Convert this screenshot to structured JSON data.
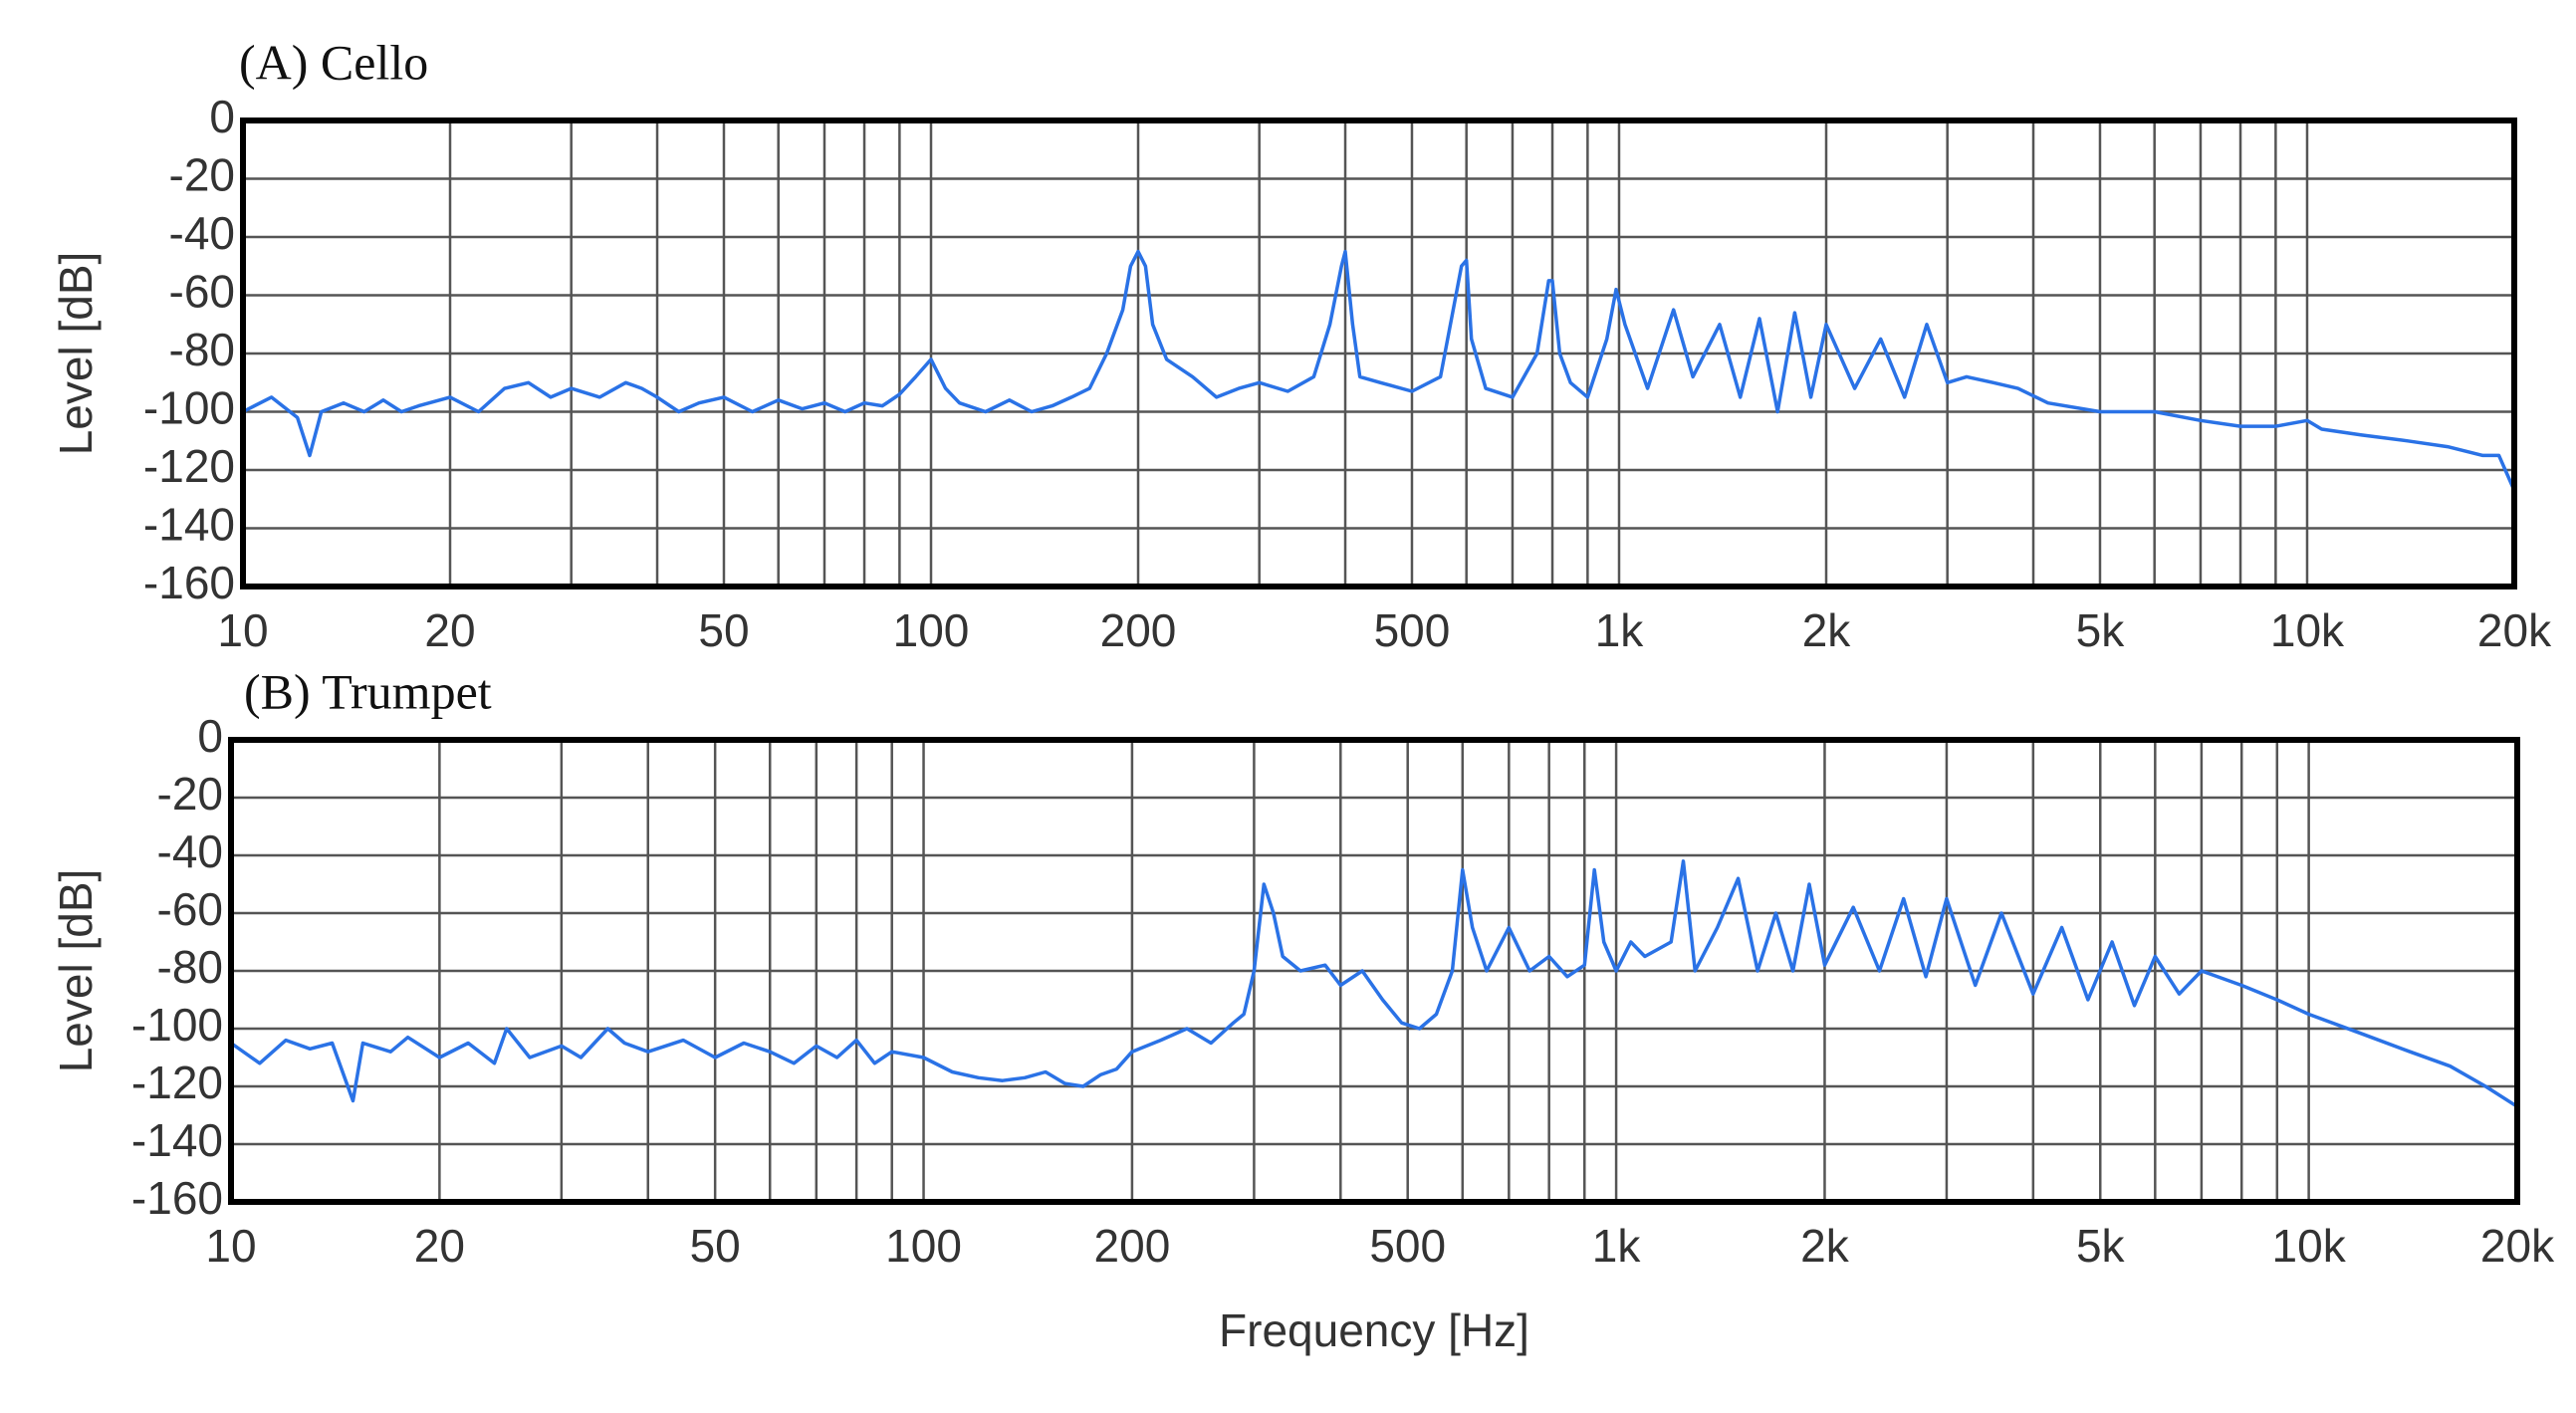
{
  "chart_data": [
    {
      "type": "line",
      "title": "(A) Cello",
      "y_label": "Level [dB]",
      "color": "#2a72e6",
      "xscale": "log",
      "xlim": [
        10,
        20000
      ],
      "ylim": [
        -160,
        0
      ],
      "grid": true,
      "yticks": [
        -160,
        -140,
        -120,
        -100,
        -80,
        -60,
        -40,
        -20,
        0
      ],
      "xticks": [
        10,
        20,
        50,
        100,
        200,
        500,
        {
          "value": 1000,
          "label": "1k"
        },
        {
          "value": 2000,
          "label": "2k"
        },
        {
          "value": 5000,
          "label": "5k"
        },
        {
          "value": 10000,
          "label": "10k"
        },
        {
          "value": 20000,
          "label": "20k"
        }
      ],
      "xminor": [
        30,
        40,
        60,
        70,
        80,
        90,
        300,
        400,
        600,
        700,
        800,
        900,
        3000,
        4000,
        6000,
        7000,
        8000,
        9000
      ],
      "x": [
        10,
        11,
        12,
        12.5,
        13,
        14,
        15,
        16,
        17,
        18,
        20,
        22,
        24,
        26,
        28,
        30,
        33,
        36,
        38,
        40,
        43,
        46,
        50,
        55,
        60,
        65,
        70,
        75,
        80,
        85,
        90,
        95,
        100,
        105,
        110,
        120,
        130,
        140,
        150,
        160,
        170,
        180,
        190,
        195,
        200,
        205,
        210,
        220,
        240,
        260,
        280,
        300,
        330,
        360,
        380,
        395,
        400,
        410,
        420,
        450,
        500,
        550,
        590,
        600,
        610,
        640,
        700,
        760,
        790,
        800,
        820,
        850,
        900,
        960,
        990,
        1020,
        1100,
        1200,
        1280,
        1400,
        1500,
        1600,
        1700,
        1800,
        1900,
        2000,
        2200,
        2400,
        2600,
        2800,
        3000,
        3200,
        3500,
        3800,
        4200,
        5000,
        6000,
        7000,
        8000,
        9000,
        10000,
        10500,
        12000,
        14000,
        16000,
        18000,
        19000,
        20000
      ],
      "values": [
        -100,
        -95,
        -102,
        -115,
        -100,
        -97,
        -100,
        -96,
        -100,
        -98,
        -95,
        -100,
        -92,
        -90,
        -95,
        -92,
        -95,
        -90,
        -92,
        -95,
        -100,
        -97,
        -95,
        -100,
        -96,
        -99,
        -97,
        -100,
        -97,
        -98,
        -94,
        -88,
        -82,
        -92,
        -97,
        -100,
        -96,
        -100,
        -98,
        -95,
        -92,
        -80,
        -65,
        -50,
        -45,
        -50,
        -70,
        -82,
        -88,
        -95,
        -92,
        -90,
        -93,
        -88,
        -70,
        -50,
        -45,
        -70,
        -88,
        -90,
        -93,
        -88,
        -50,
        -48,
        -75,
        -92,
        -95,
        -80,
        -55,
        -55,
        -80,
        -90,
        -95,
        -75,
        -58,
        -70,
        -92,
        -65,
        -88,
        -70,
        -95,
        -68,
        -100,
        -66,
        -95,
        -70,
        -92,
        -75,
        -95,
        -70,
        -90,
        -88,
        -90,
        -92,
        -97,
        -100,
        -100,
        -103,
        -105,
        -105,
        -103,
        -106,
        -108,
        -110,
        -112,
        -115,
        -115,
        -127
      ]
    },
    {
      "type": "line",
      "title": "(B) Trumpet",
      "x_label": "Frequency [Hz]",
      "y_label": "Level [dB]",
      "color": "#2a72e6",
      "xscale": "log",
      "xlim": [
        10,
        20000
      ],
      "ylim": [
        -160,
        0
      ],
      "grid": true,
      "yticks": [
        -160,
        -140,
        -120,
        -100,
        -80,
        -60,
        -40,
        -20,
        0
      ],
      "xticks": [
        10,
        20,
        50,
        100,
        200,
        500,
        {
          "value": 1000,
          "label": "1k"
        },
        {
          "value": 2000,
          "label": "2k"
        },
        {
          "value": 5000,
          "label": "5k"
        },
        {
          "value": 10000,
          "label": "10k"
        },
        {
          "value": 20000,
          "label": "20k"
        }
      ],
      "xminor": [
        30,
        40,
        60,
        70,
        80,
        90,
        300,
        400,
        600,
        700,
        800,
        900,
        3000,
        4000,
        6000,
        7000,
        8000,
        9000
      ],
      "x": [
        10,
        11,
        12,
        13,
        14,
        15,
        15.5,
        17,
        18,
        20,
        22,
        24,
        25,
        27,
        30,
        32,
        35,
        37,
        40,
        45,
        50,
        55,
        60,
        65,
        70,
        75,
        80,
        85,
        90,
        100,
        110,
        120,
        130,
        140,
        150,
        160,
        170,
        180,
        190,
        200,
        220,
        240,
        260,
        280,
        290,
        300,
        310,
        320,
        330,
        350,
        380,
        400,
        430,
        460,
        490,
        520,
        550,
        580,
        600,
        620,
        650,
        700,
        750,
        800,
        850,
        900,
        930,
        960,
        1000,
        1050,
        1100,
        1200,
        1250,
        1300,
        1400,
        1500,
        1600,
        1700,
        1800,
        1900,
        2000,
        2200,
        2400,
        2600,
        2800,
        3000,
        3300,
        3600,
        4000,
        4400,
        4800,
        5200,
        5600,
        6000,
        6500,
        7000,
        8000,
        9000,
        10000,
        12000,
        14000,
        16000,
        18000,
        20000
      ],
      "values": [
        -105,
        -112,
        -104,
        -107,
        -105,
        -125,
        -105,
        -108,
        -103,
        -110,
        -105,
        -112,
        -100,
        -110,
        -106,
        -110,
        -100,
        -105,
        -108,
        -104,
        -110,
        -105,
        -108,
        -112,
        -106,
        -110,
        -104,
        -112,
        -108,
        -110,
        -115,
        -117,
        -118,
        -117,
        -115,
        -119,
        -120,
        -116,
        -114,
        -108,
        -104,
        -100,
        -105,
        -98,
        -95,
        -80,
        -50,
        -60,
        -75,
        -80,
        -78,
        -85,
        -80,
        -90,
        -98,
        -100,
        -95,
        -80,
        -45,
        -65,
        -80,
        -65,
        -80,
        -75,
        -82,
        -78,
        -45,
        -70,
        -80,
        -70,
        -75,
        -70,
        -42,
        -80,
        -65,
        -48,
        -80,
        -60,
        -80,
        -50,
        -78,
        -58,
        -80,
        -55,
        -82,
        -55,
        -85,
        -60,
        -88,
        -65,
        -90,
        -70,
        -92,
        -75,
        -88,
        -80,
        -85,
        -90,
        -95,
        -102,
        -108,
        -113,
        -120,
        -127
      ]
    }
  ]
}
